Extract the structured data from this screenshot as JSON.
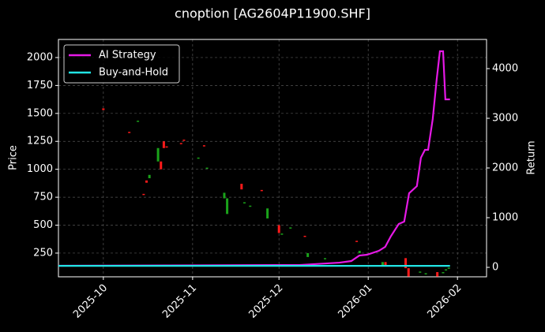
{
  "chart_data": {
    "type": "candlestick",
    "title": "cnoption [AG2604P11900.SHF]",
    "y_label": "Price",
    "y2_label": "Return",
    "x": [
      0,
      9,
      12,
      14,
      15,
      16,
      19,
      20,
      21,
      22,
      27,
      28,
      33,
      35,
      36,
      42,
      43,
      48,
      49,
      51,
      55,
      57,
      61,
      62,
      65,
      70,
      71,
      77,
      88,
      89,
      97,
      98,
      105,
      106,
      110,
      112,
      116,
      118,
      119,
      120
    ],
    "open": [
      1530,
      1325,
      1435,
      770,
      880,
      950,
      1190,
      1000,
      1190,
      1195,
      1225,
      1255,
      1105,
      1205,
      1015,
      790,
      740,
      820,
      705,
      675,
      805,
      650,
      430,
      425,
      480,
      395,
      250,
      205,
      350,
      270,
      170,
      130,
      115,
      40,
      85,
      70,
      40,
      80,
      105,
      120
    ],
    "close": [
      1545,
      1335,
      1425,
      780,
      900,
      920,
      1070,
      1070,
      1250,
      1205,
      1235,
      1265,
      1095,
      1215,
      1005,
      740,
      600,
      870,
      695,
      665,
      815,
      560,
      500,
      415,
      470,
      405,
      215,
      195,
      360,
      250,
      140,
      170,
      205,
      115,
      75,
      60,
      80,
      70,
      95,
      110
    ],
    "up_color": "#ff1a1a",
    "down_color": "#1aa31a",
    "series": [
      {
        "name": "AI Strategy",
        "color": "#e619e6",
        "axis": "y2",
        "x": [
          -15.6,
          68.3,
          82.0,
          86.1,
          88.9,
          91.6,
          95.7,
          97.9,
          99.8,
          102.6,
          104.5,
          106.2,
          108.9,
          110.3,
          111.7,
          112.8,
          114.4,
          115.8,
          116.9,
          118.0,
          118.8,
          120.4
        ],
        "values": [
          32,
          48,
          95,
          127,
          238,
          254,
          333,
          413,
          619,
          873,
          921,
          1492,
          1635,
          2206,
          2365,
          2365,
          2984,
          3794,
          4349,
          4349,
          3381,
          3381
        ]
      },
      {
        "name": "Buy-and-Hold",
        "color": "#22e5e5",
        "axis": "y2",
        "x": [
          -15.6,
          120.4
        ],
        "values": [
          30,
          30
        ]
      }
    ],
    "xlim": [
      -15.6,
      133.1
    ],
    "xticks": [
      {
        "value": 0,
        "label": "2025-10"
      },
      {
        "value": 31,
        "label": "2025-11"
      },
      {
        "value": 61,
        "label": "2025-12"
      },
      {
        "value": 92,
        "label": "2026-01"
      },
      {
        "value": 123,
        "label": "2026-02"
      }
    ],
    "ylim": [
      38,
      2162
    ],
    "yticks": [
      250,
      500,
      750,
      1000,
      1250,
      1500,
      1750,
      2000
    ],
    "y2lim": [
      -190,
      4587
    ],
    "y2ticks": [
      0,
      1000,
      2000,
      3000,
      4000
    ],
    "grid": true,
    "legend": "upper left"
  }
}
